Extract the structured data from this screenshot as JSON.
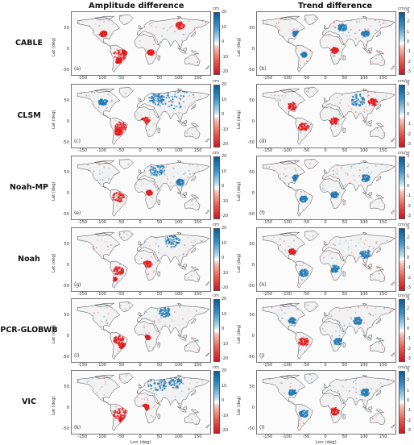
{
  "columns": [
    {
      "title": "Amplitude difference",
      "unit": "cm",
      "ticks": [
        "20",
        "10",
        "0",
        "-10",
        "-20"
      ]
    },
    {
      "title": "Trend difference",
      "unit": "cm/yr",
      "ticks": [
        "3",
        "2",
        "1",
        "0",
        "-1",
        "-2",
        "-3"
      ]
    }
  ],
  "rows": [
    {
      "model": "CABLE",
      "panels": [
        "(a)",
        "(b)"
      ]
    },
    {
      "model": "CLSM",
      "panels": [
        "(c)",
        "(d)"
      ]
    },
    {
      "model": "Noah-MP",
      "panels": [
        "(e)",
        "(f)"
      ]
    },
    {
      "model": "Noah",
      "panels": [
        "(g)",
        "(h)"
      ]
    },
    {
      "model": "PCR-GLOBWB",
      "panels": [
        "(i)",
        "(j)"
      ]
    },
    {
      "model": "VIC",
      "panels": [
        "(k)",
        "(l)"
      ]
    }
  ],
  "axes": {
    "xlabel": "Lon (deg)",
    "ylabel": "Lat (deg)",
    "xticks": [
      "-150",
      "-100",
      "-50",
      "0",
      "50",
      "100",
      "150"
    ],
    "yticks": [
      "50",
      "0",
      "-50"
    ]
  },
  "colors": {
    "positive": "#1f78b4",
    "negative": "#e31a1c",
    "neutral": "#f2f2f2",
    "coast": "#333333"
  }
}
